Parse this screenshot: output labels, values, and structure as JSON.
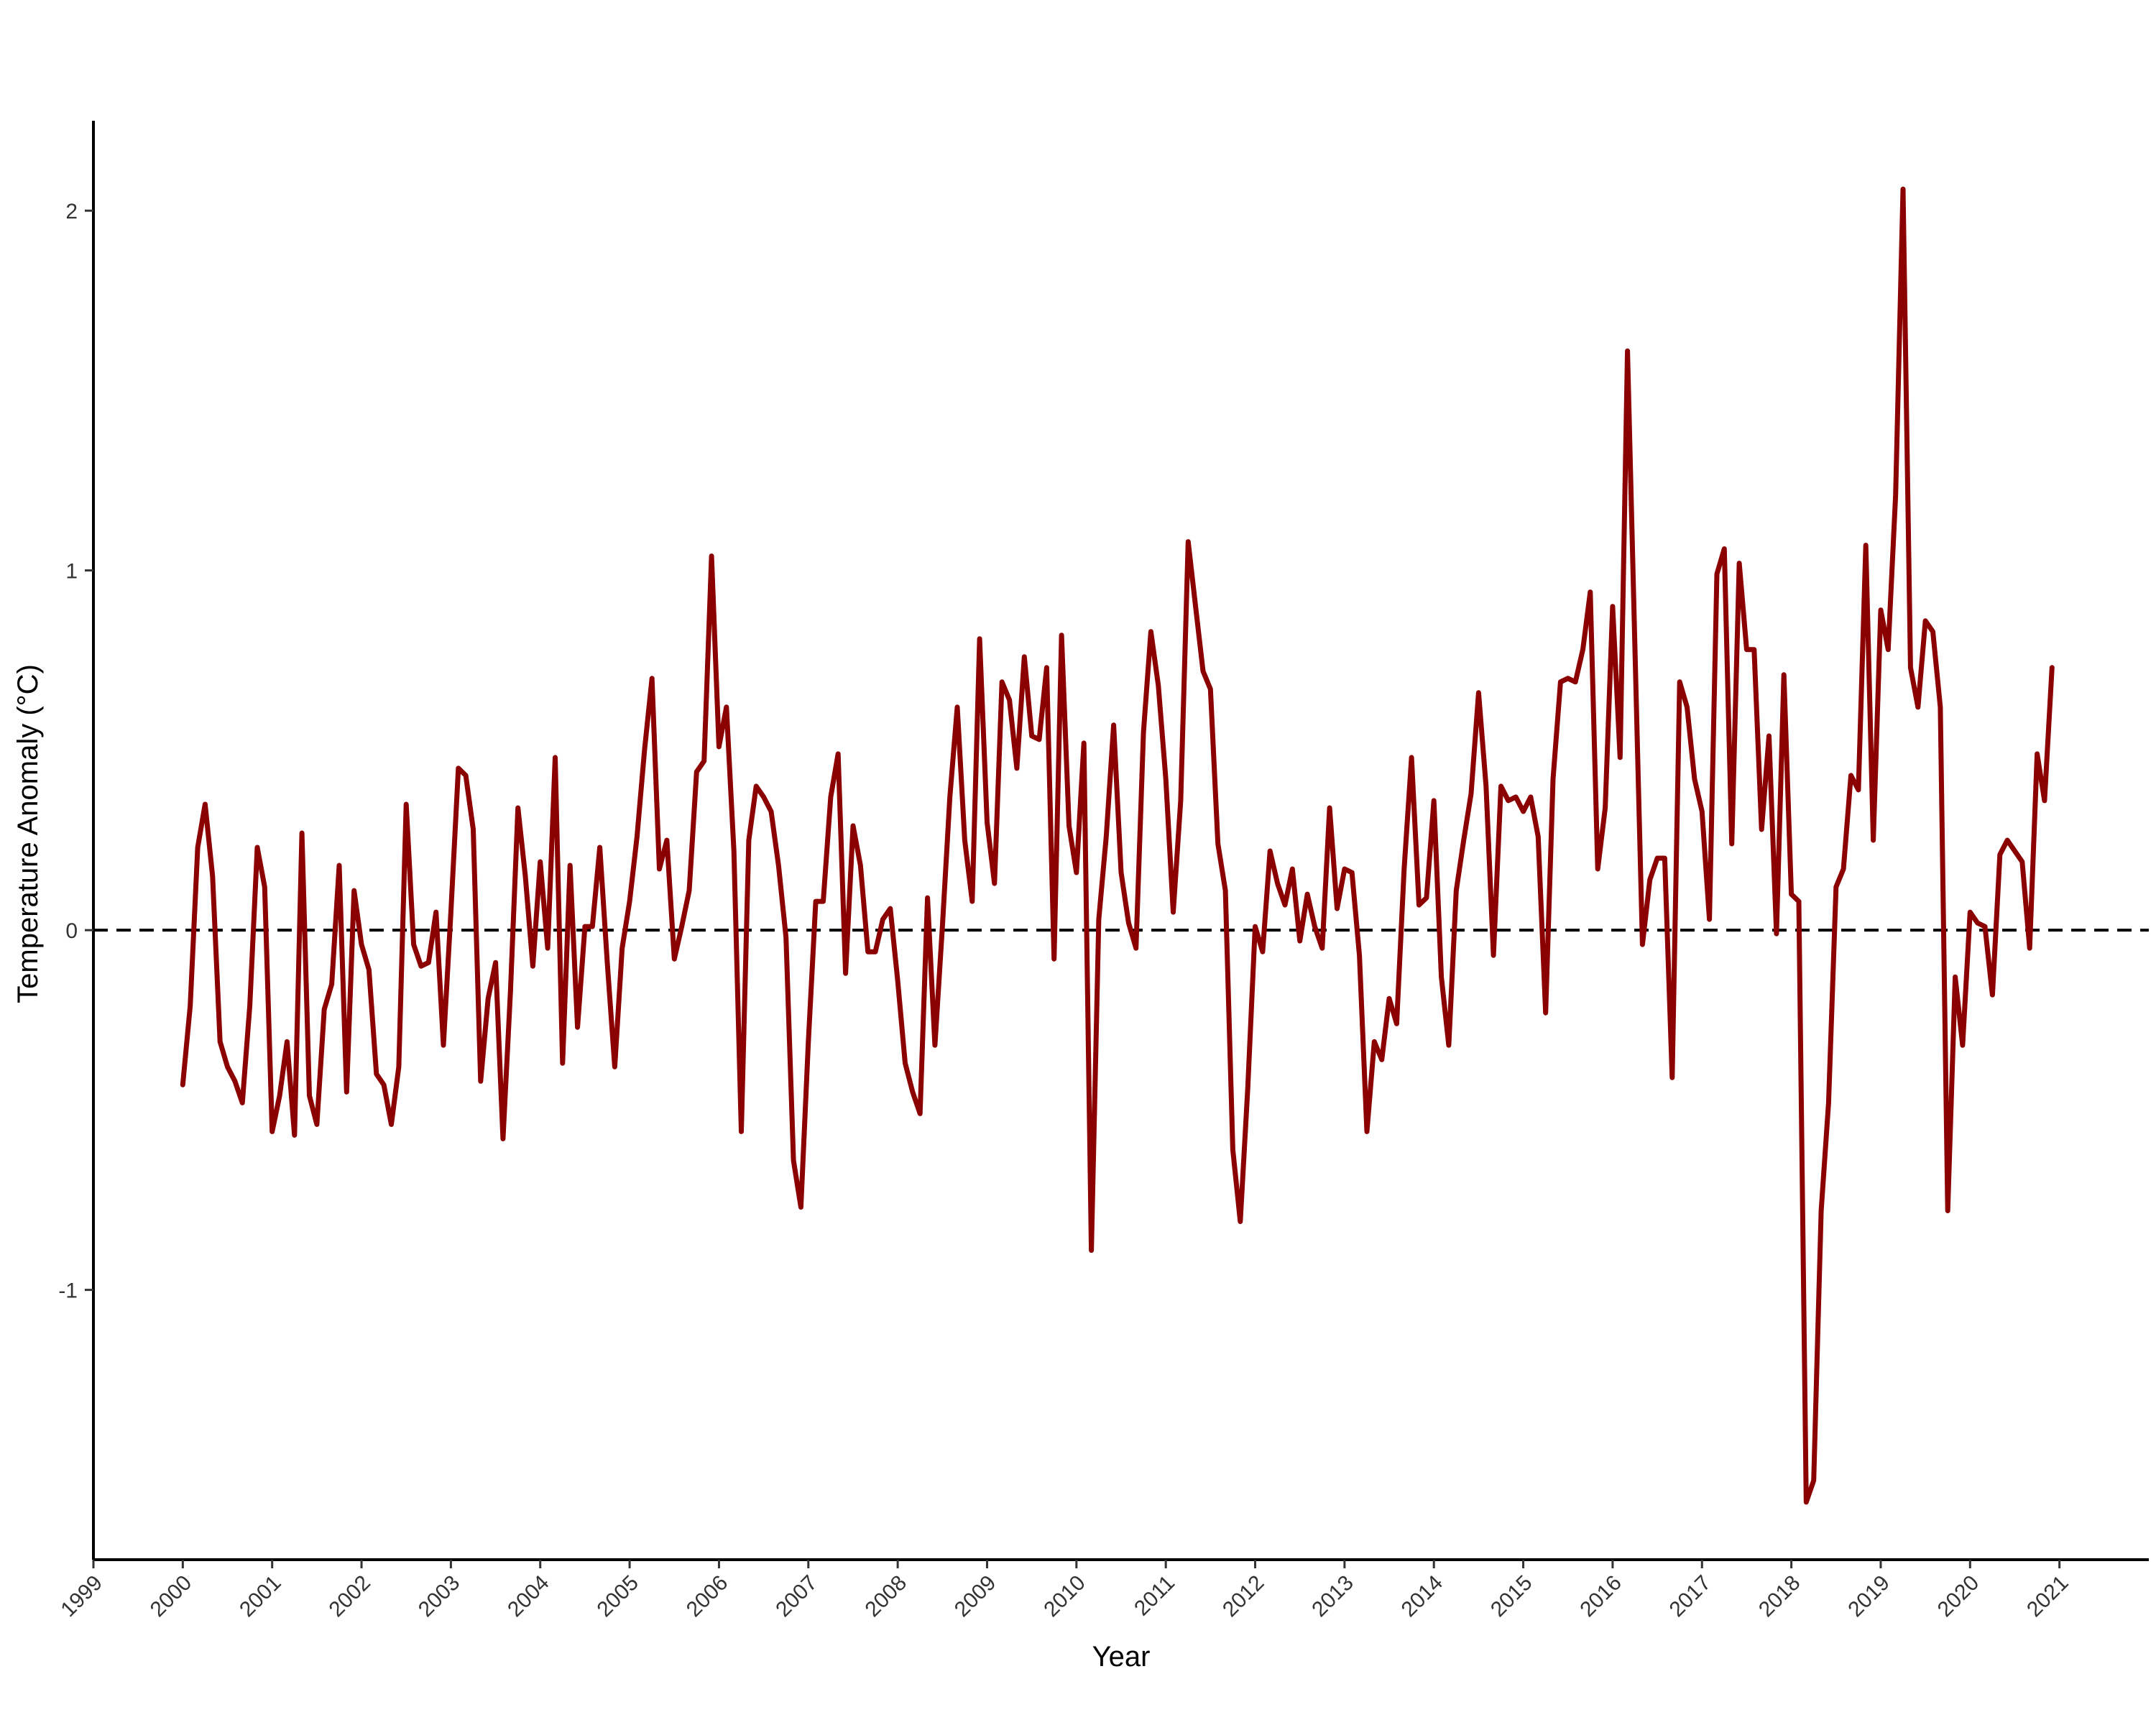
{
  "chart_data": {
    "type": "line",
    "xlabel": "Year",
    "ylabel": "Temperature Anomaly (°C)",
    "title": "",
    "x_start": "2000-01",
    "x_interval": "monthly",
    "xlim": [
      1999,
      2022
    ],
    "ylim": [
      -1.75,
      2.25
    ],
    "x_ticks": [
      "1999",
      "2000",
      "2001",
      "2002",
      "2003",
      "2004",
      "2005",
      "2006",
      "2007",
      "2008",
      "2009",
      "2010",
      "2011",
      "2012",
      "2013",
      "2014",
      "2015",
      "2016",
      "2017",
      "2018",
      "2019",
      "2020",
      "2021"
    ],
    "y_ticks": [
      -1,
      0,
      1,
      2
    ],
    "reference_line": {
      "y": 0,
      "style": "dashed",
      "color": "#000000"
    },
    "grid": false,
    "legend": "none",
    "series": [
      {
        "color": "#8B0000",
        "values": [
          -0.43,
          -0.21,
          0.23,
          0.35,
          0.15,
          -0.31,
          -0.38,
          -0.42,
          -0.48,
          -0.21,
          0.23,
          0.12,
          -0.56,
          -0.46,
          -0.31,
          -0.57,
          0.27,
          -0.46,
          -0.54,
          -0.22,
          -0.15,
          0.18,
          -0.45,
          0.11,
          -0.04,
          -0.11,
          -0.4,
          -0.43,
          -0.54,
          -0.38,
          0.35,
          -0.04,
          -0.1,
          -0.09,
          0.05,
          -0.32,
          0.05,
          0.45,
          0.43,
          0.28,
          -0.42,
          -0.19,
          -0.09,
          -0.58,
          -0.17,
          0.34,
          0.15,
          -0.1,
          0.19,
          -0.05,
          0.48,
          -0.37,
          0.18,
          -0.27,
          0.01,
          0.01,
          0.23,
          -0.09,
          -0.38,
          -0.05,
          0.08,
          0.26,
          0.5,
          0.7,
          0.17,
          0.25,
          -0.08,
          0.01,
          0.11,
          0.44,
          0.47,
          1.04,
          0.51,
          0.62,
          0.22,
          -0.56,
          0.25,
          0.4,
          0.37,
          0.33,
          0.18,
          -0.02,
          -0.64,
          -0.77,
          -0.31,
          0.08,
          0.08,
          0.37,
          0.49,
          -0.12,
          0.29,
          0.18,
          -0.06,
          -0.06,
          0.03,
          0.06,
          -0.14,
          -0.37,
          -0.45,
          -0.51,
          0.09,
          -0.32,
          0.01,
          0.37,
          0.62,
          0.25,
          0.08,
          0.81,
          0.3,
          0.13,
          0.69,
          0.64,
          0.45,
          0.76,
          0.54,
          0.53,
          0.73,
          -0.08,
          0.82,
          0.29,
          0.16,
          0.52,
          -0.89,
          0.03,
          0.26,
          0.57,
          0.16,
          0.02,
          -0.05,
          0.55,
          0.83,
          0.68,
          0.42,
          0.05,
          0.36,
          1.08,
          0.9,
          0.72,
          0.67,
          0.24,
          0.11,
          -0.61,
          -0.81,
          -0.44,
          0.01,
          -0.06,
          0.22,
          0.13,
          0.07,
          0.17,
          -0.03,
          0.1,
          0.01,
          -0.05,
          0.34,
          0.06,
          0.17,
          0.16,
          -0.07,
          -0.56,
          -0.31,
          -0.36,
          -0.19,
          -0.26,
          0.17,
          0.48,
          0.07,
          0.09,
          0.36,
          -0.13,
          -0.32,
          0.11,
          0.25,
          0.38,
          0.66,
          0.4,
          -0.07,
          0.4,
          0.36,
          0.37,
          0.33,
          0.37,
          0.26,
          -0.23,
          0.42,
          0.69,
          0.7,
          0.69,
          0.78,
          0.94,
          0.17,
          0.34,
          0.9,
          0.48,
          1.61,
          0.78,
          -0.04,
          0.14,
          0.2,
          0.2,
          -0.41,
          0.69,
          0.62,
          0.42,
          0.33,
          0.03,
          0.99,
          1.06,
          0.24,
          1.02,
          0.78,
          0.78,
          0.28,
          0.54,
          -0.01,
          0.71,
          0.1,
          0.08,
          -1.59,
          -1.53,
          -0.78,
          -0.48,
          0.12,
          0.17,
          0.43,
          0.39,
          1.07,
          0.25,
          0.89,
          0.78,
          1.21,
          2.06,
          0.73,
          0.62,
          0.86,
          0.83,
          0.62,
          -0.78,
          -0.13,
          -0.32,
          0.05,
          0.02,
          0.01,
          -0.18,
          0.21,
          0.25,
          0.22,
          0.19,
          -0.05,
          0.49,
          0.36,
          0.73
        ]
      }
    ]
  }
}
